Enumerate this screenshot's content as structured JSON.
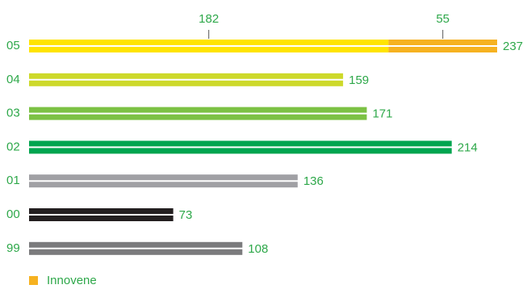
{
  "chart_data": {
    "type": "bar",
    "orientation": "horizontal",
    "categories": [
      "05",
      "04",
      "03",
      "02",
      "01",
      "00",
      "99"
    ],
    "series": [
      {
        "colors": [
          "#ffe400",
          "#cdd92a",
          "#7cc144",
          "#00a54f",
          "#a0a0a4",
          "#231f20",
          "#7b7b7d"
        ],
        "values": [
          182,
          159,
          171,
          214,
          136,
          73,
          108
        ]
      },
      {
        "name": "Innovene",
        "color": "#f6b221",
        "values": [
          55,
          null,
          null,
          null,
          null,
          null,
          null
        ]
      }
    ],
    "totals": [
      237,
      159,
      171,
      214,
      136,
      73,
      108
    ]
  }
}
